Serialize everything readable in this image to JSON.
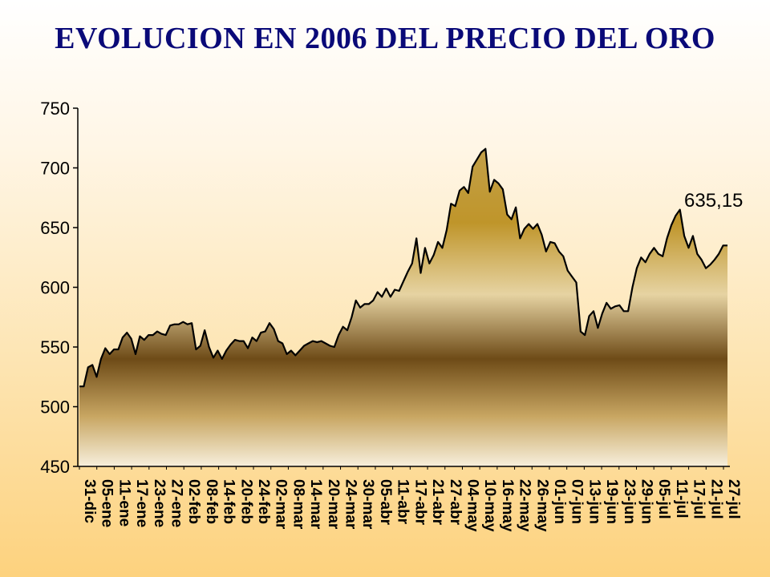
{
  "chart_data": {
    "type": "area",
    "title": "EVOLUCION EN 2006 DEL PRECIO DEL ORO",
    "xlabel": "",
    "ylabel": "",
    "ylim": [
      450,
      750
    ],
    "yticks": [
      "450",
      "500",
      "550",
      "600",
      "650",
      "700",
      "750"
    ],
    "xtick_labels": [
      "31-dic",
      "05-ene",
      "11-ene",
      "17-ene",
      "23-ene",
      "27-ene",
      "02-feb",
      "08-feb",
      "14-feb",
      "20-feb",
      "24-feb",
      "02-mar",
      "08-mar",
      "14-mar",
      "20-mar",
      "24-mar",
      "30-mar",
      "05-abr",
      "11-abr",
      "17-abr",
      "21-abr",
      "27-abr",
      "04-may",
      "10-may",
      "16-may",
      "22-may",
      "26-may",
      "01-jun",
      "07-jun",
      "13-jun",
      "19-jun",
      "23-jun",
      "29-jun",
      "05-jul",
      "11-jul",
      "17-jul",
      "21-jul",
      "27-jul"
    ],
    "grid": false,
    "fill": "gold gradient",
    "line_color": "#000000",
    "annotation": "635,15",
    "values": [
      517,
      517,
      533,
      535,
      525,
      540,
      549,
      544,
      548,
      548,
      558,
      562,
      557,
      544,
      559,
      556,
      560,
      560,
      563,
      561,
      560,
      568,
      569,
      569,
      571,
      569,
      570,
      548,
      551,
      564,
      550,
      541,
      547,
      540,
      547,
      552,
      556,
      555,
      555,
      549,
      558,
      555,
      562,
      563,
      570,
      565,
      555,
      553,
      544,
      547,
      543,
      547,
      551,
      553,
      555,
      554,
      555,
      553,
      551,
      550,
      560,
      567,
      564,
      575,
      589,
      583,
      586,
      586,
      589,
      596,
      592,
      599,
      592,
      598,
      597,
      605,
      613,
      620,
      641,
      612,
      633,
      620,
      627,
      638,
      633,
      648,
      670,
      668,
      681,
      684,
      679,
      701,
      707,
      713,
      716,
      680,
      690,
      687,
      682,
      661,
      657,
      667,
      641,
      649,
      653,
      649,
      653,
      644,
      630,
      638,
      637,
      630,
      626,
      614,
      609,
      604,
      563,
      560,
      576,
      580,
      566,
      578,
      587,
      582,
      584,
      585,
      580,
      580,
      600,
      616,
      625,
      621,
      628,
      633,
      628,
      626,
      641,
      652,
      660,
      665,
      643,
      633,
      643,
      628,
      623,
      616,
      619,
      623,
      628,
      635,
      635
    ]
  }
}
